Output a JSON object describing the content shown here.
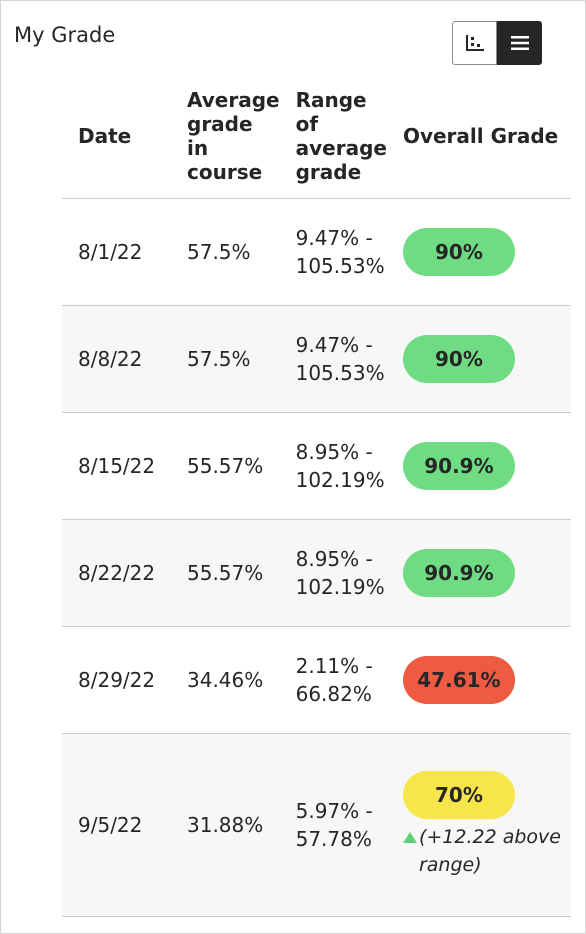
{
  "title": "My Grade",
  "view_toggle": {
    "chart_icon": "scatter-chart-icon",
    "table_icon": "list-icon",
    "active": "table"
  },
  "table": {
    "headers": {
      "date": "Date",
      "avg": "Average grade in course",
      "range": "Range of average grade",
      "overall": "Overall Grade"
    },
    "rows": [
      {
        "date": "8/1/22",
        "avg": "57.5%",
        "range": "9.47% - 105.53%",
        "overall": "90%",
        "status": "green"
      },
      {
        "date": "8/8/22",
        "avg": "57.5%",
        "range": "9.47% - 105.53%",
        "overall": "90%",
        "status": "green"
      },
      {
        "date": "8/15/22",
        "avg": "55.57%",
        "range": "8.95% - 102.19%",
        "overall": "90.9%",
        "status": "green"
      },
      {
        "date": "8/22/22",
        "avg": "55.57%",
        "range": "8.95% - 102.19%",
        "overall": "90.9%",
        "status": "green"
      },
      {
        "date": "8/29/22",
        "avg": "34.46%",
        "range": "2.11% - 66.82%",
        "overall": "47.61%",
        "status": "red"
      },
      {
        "date": "9/5/22",
        "avg": "31.88%",
        "range": "5.97% - 57.78%",
        "overall": "70%",
        "status": "yellow",
        "note": "(+12.22 above range)"
      }
    ]
  },
  "colors": {
    "green": "#6fdc84",
    "red": "#ef5a42",
    "yellow": "#f7e64a",
    "up_arrow": "#5fd07a"
  }
}
